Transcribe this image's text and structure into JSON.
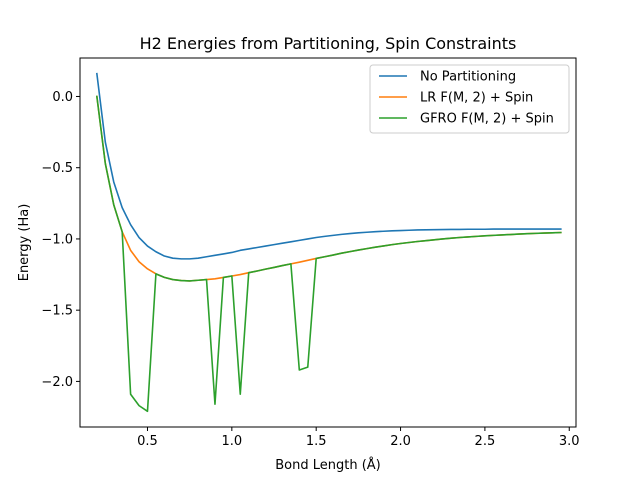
{
  "chart_data": {
    "type": "line",
    "title": "H2 Energies from Partitioning, Spin Constraints",
    "xlabel": "Bond Length (Å)",
    "ylabel": "Energy (Ha)",
    "xlim": [
      0.1,
      3.04
    ],
    "ylim": [
      -2.32,
      0.27
    ],
    "xticks": [
      0.5,
      1.0,
      1.5,
      2.0,
      2.5,
      3.0
    ],
    "xtick_labels": [
      "0.5",
      "1.0",
      "1.5",
      "2.0",
      "2.5",
      "3.0"
    ],
    "yticks": [
      0.0,
      -0.5,
      -1.0,
      -1.5,
      -2.0
    ],
    "ytick_labels": [
      "0.0",
      "−0.5",
      "−1.0",
      "−1.5",
      "−2.0"
    ],
    "grid": false,
    "legend_position": "top-right",
    "series": [
      {
        "name": "No Partitioning",
        "color": "#1f77b4",
        "x": [
          0.2,
          0.25,
          0.3,
          0.35,
          0.4,
          0.45,
          0.5,
          0.55,
          0.6,
          0.65,
          0.7,
          0.75,
          0.8,
          0.85,
          0.9,
          0.95,
          1.0,
          1.05,
          1.1,
          1.15,
          1.2,
          1.25,
          1.3,
          1.35,
          1.4,
          1.45,
          1.5,
          1.55,
          1.6,
          1.65,
          1.7,
          1.75,
          1.8,
          1.85,
          1.9,
          1.95,
          2.0,
          2.05,
          2.1,
          2.15,
          2.2,
          2.25,
          2.3,
          2.35,
          2.4,
          2.45,
          2.5,
          2.55,
          2.6,
          2.65,
          2.7,
          2.75,
          2.8,
          2.85,
          2.9,
          2.95
        ],
        "y": [
          0.16,
          -0.32,
          -0.6,
          -0.78,
          -0.9,
          -0.99,
          -1.05,
          -1.09,
          -1.12,
          -1.135,
          -1.14,
          -1.14,
          -1.135,
          -1.125,
          -1.115,
          -1.105,
          -1.095,
          -1.08,
          -1.07,
          -1.06,
          -1.05,
          -1.04,
          -1.03,
          -1.02,
          -1.01,
          -1.0,
          -0.99,
          -0.982,
          -0.975,
          -0.968,
          -0.962,
          -0.957,
          -0.953,
          -0.949,
          -0.946,
          -0.943,
          -0.941,
          -0.939,
          -0.937,
          -0.936,
          -0.935,
          -0.934,
          -0.933,
          -0.933,
          -0.932,
          -0.932,
          -0.932,
          -0.931,
          -0.931,
          -0.931,
          -0.931,
          -0.931,
          -0.931,
          -0.931,
          -0.931,
          -0.931
        ]
      },
      {
        "name": "LR F(M, 2) + Spin",
        "color": "#ff7f0e",
        "x": [
          0.2,
          0.25,
          0.3,
          0.35,
          0.4,
          0.45,
          0.5,
          0.55,
          0.6,
          0.65,
          0.7,
          0.75,
          0.8,
          0.85,
          0.9,
          0.95,
          1.0,
          1.05,
          1.1,
          1.15,
          1.2,
          1.25,
          1.3,
          1.35,
          1.4,
          1.45,
          1.5,
          1.55,
          1.6,
          1.65,
          1.7,
          1.75,
          1.8,
          1.85,
          1.9,
          1.95,
          2.0,
          2.05,
          2.1,
          2.15,
          2.2,
          2.25,
          2.3,
          2.35,
          2.4,
          2.45,
          2.5,
          2.55,
          2.6,
          2.65,
          2.7,
          2.75,
          2.8,
          2.85,
          2.9,
          2.95
        ],
        "y": [
          0.0,
          -0.47,
          -0.76,
          -0.95,
          -1.08,
          -1.16,
          -1.21,
          -1.245,
          -1.27,
          -1.285,
          -1.292,
          -1.295,
          -1.29,
          -1.285,
          -1.28,
          -1.27,
          -1.26,
          -1.25,
          -1.237,
          -1.225,
          -1.212,
          -1.2,
          -1.187,
          -1.175,
          -1.163,
          -1.15,
          -1.137,
          -1.125,
          -1.113,
          -1.1,
          -1.089,
          -1.078,
          -1.068,
          -1.058,
          -1.049,
          -1.04,
          -1.032,
          -1.025,
          -1.018,
          -1.012,
          -1.006,
          -1.0,
          -0.995,
          -0.99,
          -0.986,
          -0.982,
          -0.978,
          -0.975,
          -0.972,
          -0.969,
          -0.966,
          -0.963,
          -0.961,
          -0.959,
          -0.957,
          -0.955
        ]
      },
      {
        "name": "GFRO F(M, 2) + Spin",
        "color": "#2ca02c",
        "x": [
          0.2,
          0.25,
          0.3,
          0.35,
          0.4,
          0.45,
          0.5,
          0.55,
          0.6,
          0.65,
          0.7,
          0.75,
          0.8,
          0.85,
          0.9,
          0.95,
          1.0,
          1.05,
          1.1,
          1.15,
          1.2,
          1.25,
          1.3,
          1.35,
          1.4,
          1.45,
          1.5,
          1.55,
          1.6,
          1.65,
          1.7,
          1.75,
          1.8,
          1.85,
          1.9,
          1.95,
          2.0,
          2.05,
          2.1,
          2.15,
          2.2,
          2.25,
          2.3,
          2.35,
          2.4,
          2.45,
          2.5,
          2.55,
          2.6,
          2.65,
          2.7,
          2.75,
          2.8,
          2.85,
          2.9,
          2.95
        ],
        "y": [
          0.0,
          -0.47,
          -0.76,
          -0.95,
          -2.09,
          -2.17,
          -2.21,
          -1.245,
          -1.27,
          -1.285,
          -1.292,
          -1.295,
          -1.29,
          -1.285,
          -2.16,
          -1.27,
          -1.26,
          -2.09,
          -1.237,
          -1.225,
          -1.212,
          -1.2,
          -1.187,
          -1.175,
          -1.92,
          -1.9,
          -1.137,
          -1.125,
          -1.113,
          -1.1,
          -1.089,
          -1.078,
          -1.068,
          -1.058,
          -1.049,
          -1.04,
          -1.032,
          -1.025,
          -1.018,
          -1.012,
          -1.006,
          -1.0,
          -0.995,
          -0.99,
          -0.986,
          -0.982,
          -0.978,
          -0.975,
          -0.972,
          -0.969,
          -0.966,
          -0.963,
          -0.961,
          -0.959,
          -0.957,
          -0.955
        ]
      }
    ]
  }
}
